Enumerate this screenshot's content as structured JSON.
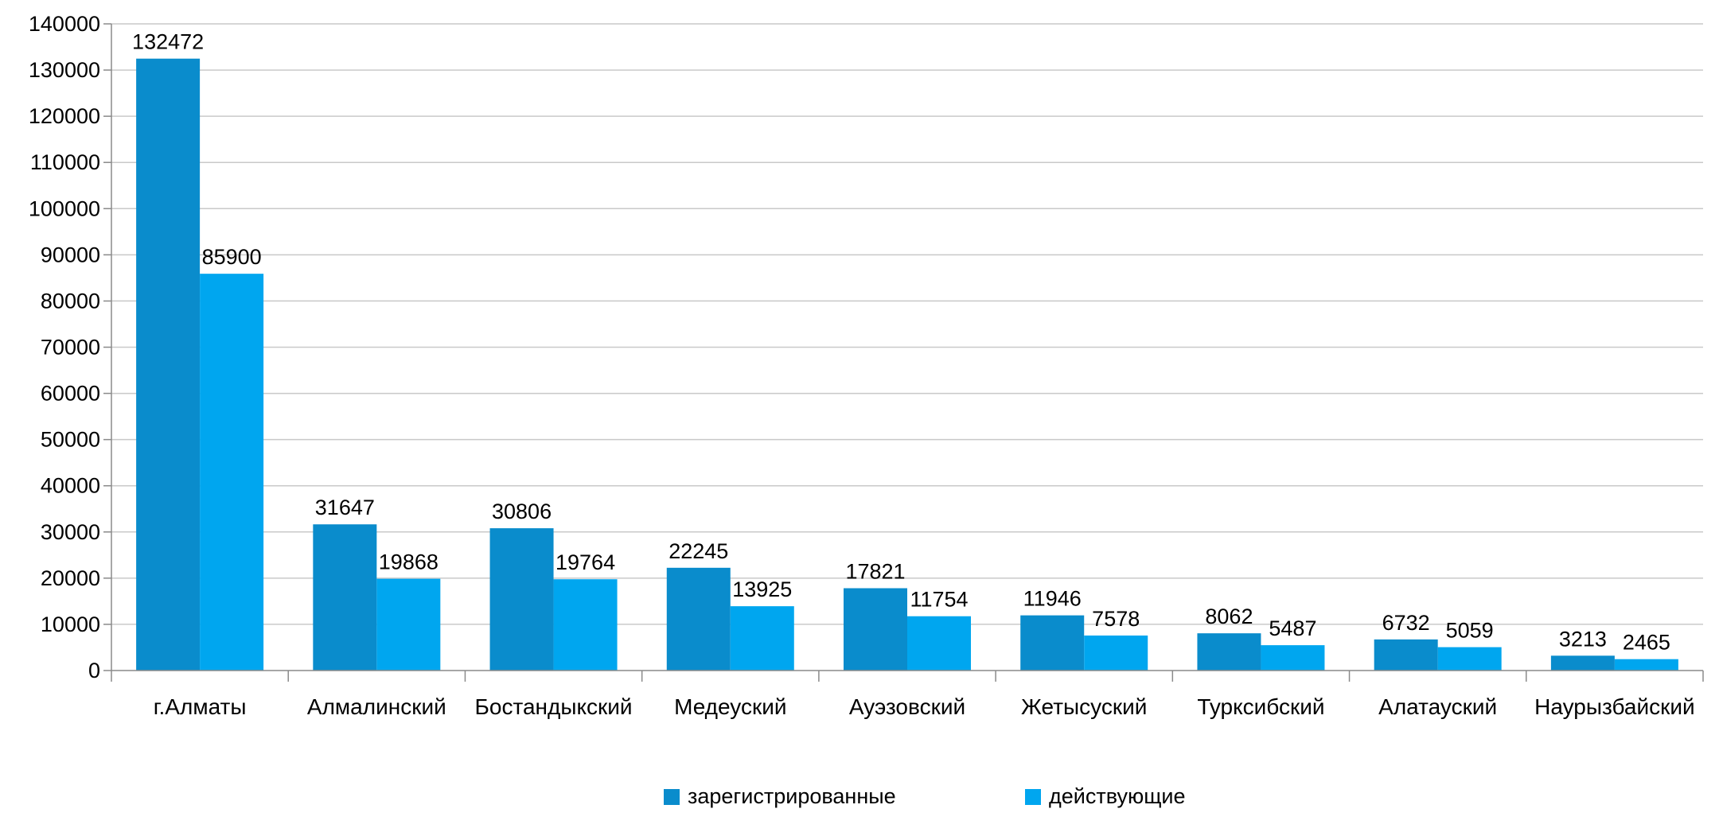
{
  "chart_data": {
    "type": "bar",
    "categories": [
      "г.Алматы",
      "Алмалинский",
      "Бостандыкский",
      "Медеуский",
      "Ауэзовский",
      "Жетысуский",
      "Турксибский",
      "Алатауский",
      "Наурызбайский"
    ],
    "series": [
      {
        "name": "зарегистрированные",
        "color": "#0a8ccc",
        "values": [
          132472,
          31647,
          30806,
          22245,
          17821,
          11946,
          8062,
          6732,
          3213
        ]
      },
      {
        "name": "действующие",
        "color": "#00a6ef",
        "values": [
          85900,
          19868,
          19764,
          13925,
          11754,
          7578,
          5487,
          5059,
          2465
        ]
      }
    ],
    "ylim": [
      0,
      140000
    ],
    "yticks": [
      0,
      10000,
      20000,
      30000,
      40000,
      50000,
      60000,
      70000,
      80000,
      90000,
      100000,
      110000,
      120000,
      130000,
      140000
    ],
    "grid": true,
    "legend_position": "bottom",
    "data_labels": true
  }
}
